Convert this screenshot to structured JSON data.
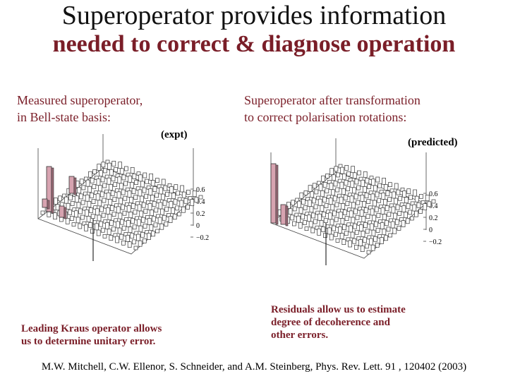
{
  "title": {
    "line1": "Superoperator provides information",
    "line2": "needed to correct & diagnose operation"
  },
  "left_panel": {
    "caption_line1": "Measured superoperator,",
    "caption_line2": "in Bell-state basis:",
    "tag": "(expt)",
    "note_line1": "Leading Kraus operator allows",
    "note_line2": "us to determine unitary error."
  },
  "right_panel": {
    "caption_line1": "Superoperator after transformation",
    "caption_line2": "to correct polarisation rotations:",
    "tag": "(predicted)",
    "note_line1": "Residuals allow us to estimate",
    "note_line2": "degree of decoherence and",
    "note_line3": "other errors."
  },
  "axis_ticks": [
    "0.6",
    "0.4",
    "0.2",
    "0",
    "−0.2"
  ],
  "reference": "M.W. Mitchell, C.W. Ellenor, S. Schneider, and A.M. Steinberg, Phys. Rev. Lett. 91 , 120402 (2003)",
  "colors": {
    "accent": "#7a1e28",
    "bar_positive": "#d7a3b0",
    "bar_dark": "#333333",
    "grid": "#444444"
  }
}
